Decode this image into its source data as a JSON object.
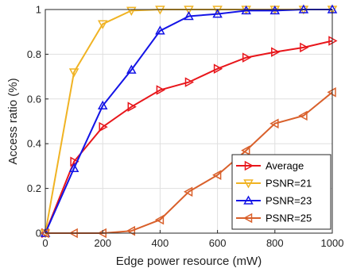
{
  "chart_data": {
    "type": "line",
    "xlabel": "Edge power resource (mW)",
    "ylabel": "Access ratio (%)",
    "xlim": [
      0,
      1000
    ],
    "ylim": [
      0,
      1
    ],
    "xticks": [
      0,
      200,
      400,
      600,
      800,
      1000
    ],
    "yticks": [
      0,
      0.2,
      0.4,
      0.6,
      0.8,
      1
    ],
    "xtick_labels": [
      "0",
      "200",
      "400",
      "600",
      "800",
      "1000"
    ],
    "ytick_labels": [
      "0",
      "0.2",
      "0.4",
      "0.6",
      "0.8",
      "1"
    ],
    "grid": true,
    "legend_position": "bottom-right",
    "x": [
      0,
      100,
      200,
      300,
      400,
      500,
      600,
      700,
      800,
      900,
      1000
    ],
    "series": [
      {
        "name": "Average",
        "color": "#e8161b",
        "marker": "triangle-right",
        "values": [
          0,
          0.32,
          0.475,
          0.565,
          0.64,
          0.675,
          0.735,
          0.785,
          0.81,
          0.83,
          0.86
        ]
      },
      {
        "name": "PSNR=21",
        "color": "#f0b323",
        "marker": "triangle-down",
        "values": [
          0,
          0.72,
          0.935,
          0.995,
          1.0,
          1.0,
          1.0,
          1.0,
          1.0,
          1.0,
          1.0
        ]
      },
      {
        "name": "PSNR=23",
        "color": "#1414e6",
        "marker": "triangle-up",
        "values": [
          0,
          0.29,
          0.57,
          0.73,
          0.905,
          0.97,
          0.98,
          0.995,
          0.995,
          1.0,
          1.0
        ]
      },
      {
        "name": "PSNR=25",
        "color": "#d9602b",
        "marker": "triangle-left",
        "values": [
          0,
          0,
          0,
          0.01,
          0.06,
          0.185,
          0.26,
          0.37,
          0.49,
          0.525,
          0.63
        ]
      }
    ]
  }
}
